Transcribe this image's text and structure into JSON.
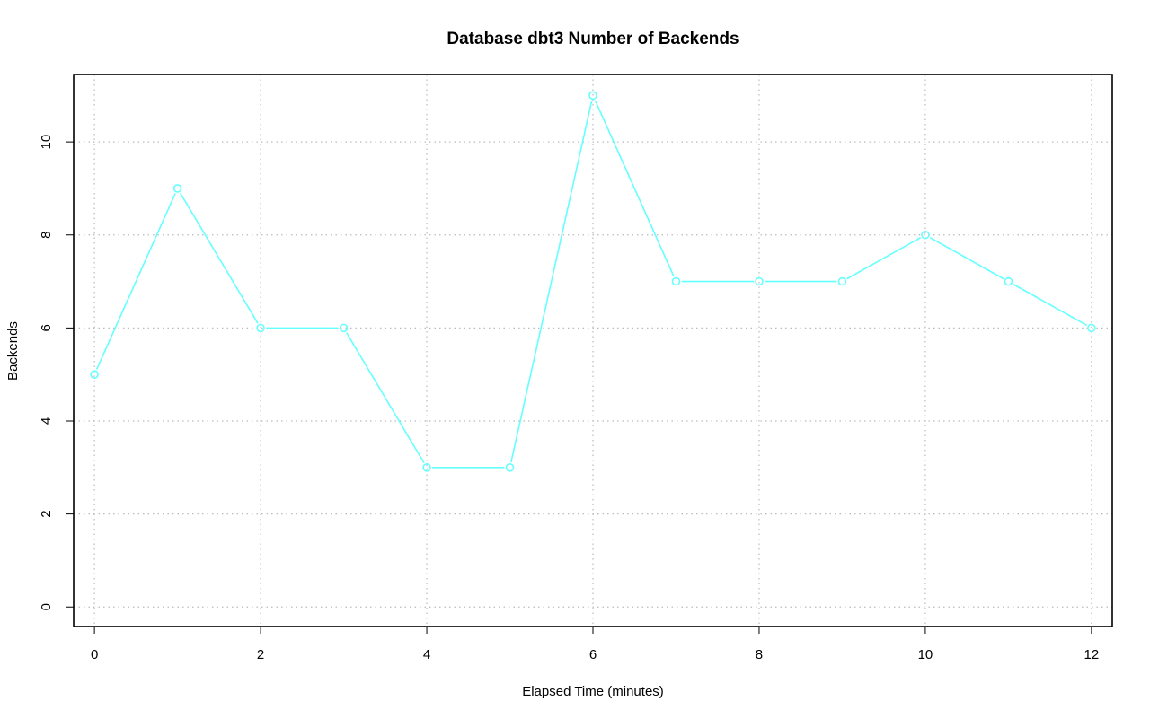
{
  "colors": {
    "series": "#66ffff",
    "grid": "#bbbbbb",
    "axis": "#000000",
    "background": "#ffffff"
  },
  "chart_data": {
    "type": "line",
    "title": "Database dbt3 Number of Backends",
    "xlabel": "Elapsed Time (minutes)",
    "ylabel": "Backends",
    "xlim": [
      -0.25,
      12.25
    ],
    "ylim": [
      -0.42,
      11.45
    ],
    "x_ticks": [
      0,
      2,
      4,
      6,
      8,
      10,
      12
    ],
    "x_tick_labels": [
      "0",
      "2",
      "4",
      "6",
      "8",
      "10",
      "12"
    ],
    "y_ticks": [
      0,
      2,
      4,
      6,
      8,
      10
    ],
    "y_tick_labels": [
      "0",
      "2",
      "4",
      "6",
      "8",
      "10"
    ],
    "grid": true,
    "grid_style": "dotted",
    "marker": "open-circle",
    "series": [
      {
        "x": [
          0,
          1,
          2,
          3,
          4,
          5,
          6,
          7,
          8,
          9,
          10,
          11,
          12
        ],
        "values": [
          5,
          9,
          6,
          6,
          3,
          3,
          11,
          7,
          7,
          7,
          8,
          7,
          6
        ]
      }
    ]
  }
}
